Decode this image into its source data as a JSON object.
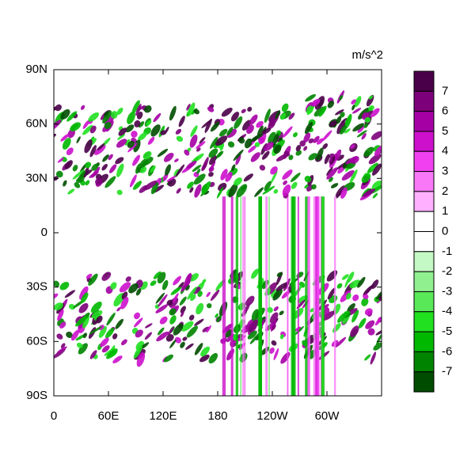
{
  "chart_data": {
    "type": "contour_map",
    "units": "m/s^2",
    "xlim": [
      0,
      360
    ],
    "xticks": [
      0,
      {
        "value": 60,
        "label": "60E"
      },
      {
        "value": 120,
        "label": "120E"
      },
      180,
      {
        "value": 240,
        "label": "120W"
      },
      {
        "value": 300,
        "label": "60W"
      }
    ],
    "ylim": [
      -90,
      90
    ],
    "yticks": [
      {
        "value": -90,
        "label": "90S"
      },
      {
        "value": -60,
        "label": "60S"
      },
      {
        "value": -30,
        "label": "30S"
      },
      0,
      {
        "value": 30,
        "label": "30N"
      },
      {
        "value": 60,
        "label": "60N"
      },
      {
        "value": 90,
        "label": "90N"
      }
    ],
    "levels": [
      7,
      6,
      5,
      4,
      3,
      2,
      1,
      0,
      -1,
      -2,
      -3,
      -4,
      -5,
      -6,
      -7
    ],
    "colors": [
      "#4a0048",
      "#7c007a",
      "#a400a4",
      "#cc10cc",
      "#f040f0",
      "#f878f8",
      "#ffb0ff",
      "#ffffff",
      "#ffffff",
      "#c4f8c4",
      "#90f090",
      "#58e858",
      "#20e020",
      "#00b800",
      "#008400",
      "#004c00"
    ]
  }
}
